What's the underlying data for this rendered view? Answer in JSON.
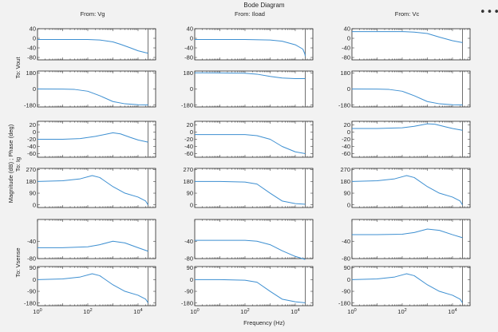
{
  "title": "Bode Diagram",
  "menu_icon": "more-horizontal-icon",
  "xlabel": "Frequency (Hz)",
  "ylabel": "Magnitude (dB) ; Phase (deg)",
  "column_titles": [
    "From: Vg",
    "From: Iload",
    "From: Vc"
  ],
  "row_titles": [
    "To: Vout",
    "To: Ig",
    "To: Vsense"
  ],
  "colors": {
    "line": "#3d8fd1",
    "axes": "#262626",
    "background": "#f2f2f2",
    "plot_bg": "#ffffff",
    "nyquist_marker": "#4d4d4d"
  },
  "chart_data": {
    "type": "line",
    "title": "Bode Diagram",
    "xlabel": "Frequency (Hz)",
    "ylabel": "Magnitude (dB) ; Phase (deg)",
    "x_scale": "log",
    "xlim": [
      1,
      50000
    ],
    "x_ticks": [
      1,
      100,
      10000
    ],
    "x_tick_labels": [
      "10^0",
      "10^2",
      "10^4"
    ],
    "nyquist_frequency": 25000,
    "grid": false,
    "inputs": [
      "Vg",
      "Iload",
      "Vc"
    ],
    "outputs": [
      "Vout",
      "Ig",
      "Vsense"
    ],
    "rows": [
      {
        "output": "Vout",
        "quantity": "magnitude",
        "ylim": [
          -90,
          40
        ],
        "yticks": [
          40,
          0,
          -40,
          -80
        ],
        "ytick_labels": [
          "40",
          "0",
          "-40",
          "-80"
        ]
      },
      {
        "output": "Vout",
        "quantity": "phase",
        "ylim": [
          -200,
          200
        ],
        "yticks": [
          180,
          0,
          -180
        ],
        "ytick_labels": [
          "180",
          "0",
          "-180"
        ]
      },
      {
        "output": "Ig",
        "quantity": "magnitude",
        "ylim": [
          -70,
          30
        ],
        "yticks": [
          20,
          0,
          -20,
          -40,
          -60
        ],
        "ytick_labels": [
          "20",
          "0",
          "-20",
          "-40",
          "-60"
        ]
      },
      {
        "output": "Ig",
        "quantity": "phase",
        "ylim": [
          -20,
          280
        ],
        "yticks": [
          270,
          180,
          90,
          0
        ],
        "ytick_labels": [
          "270",
          "180",
          "90",
          "0"
        ]
      },
      {
        "output": "Vsense",
        "quantity": "magnitude",
        "ylim": [
          -80,
          10
        ],
        "yticks": [
          -40,
          -80
        ],
        "ytick_labels": [
          "-40",
          "-80"
        ]
      },
      {
        "output": "Vsense",
        "quantity": "phase",
        "ylim": [
          -200,
          100
        ],
        "yticks": [
          90,
          0,
          -90,
          -180
        ],
        "ytick_labels": [
          "90",
          "0",
          "-90",
          "-180"
        ]
      }
    ],
    "panels": [
      {
        "row": 0,
        "col": 0,
        "x": [
          1,
          10,
          100,
          300,
          1000,
          2000,
          5000,
          10000,
          20000,
          25000
        ],
        "y": [
          -5,
          -5,
          -5,
          -7,
          -15,
          -25,
          -40,
          -52,
          -60,
          -62
        ]
      },
      {
        "row": 0,
        "col": 1,
        "x": [
          1,
          10,
          100,
          1000,
          3000,
          10000,
          20000,
          24000,
          25000
        ],
        "y": [
          -5,
          -5,
          -5,
          -7,
          -12,
          -27,
          -45,
          -65,
          -75
        ]
      },
      {
        "row": 0,
        "col": 2,
        "x": [
          1,
          10,
          100,
          300,
          1000,
          3000,
          10000,
          25000
        ],
        "y": [
          28,
          28,
          28,
          26,
          20,
          5,
          -10,
          -18
        ]
      },
      {
        "row": 1,
        "col": 0,
        "x": [
          1,
          10,
          30,
          100,
          300,
          1000,
          3000,
          10000,
          25000
        ],
        "y": [
          0,
          -1,
          -5,
          -25,
          -75,
          -140,
          -165,
          -175,
          -178
        ]
      },
      {
        "row": 1,
        "col": 1,
        "x": [
          1,
          10,
          100,
          300,
          1000,
          3000,
          10000,
          24000,
          25000
        ],
        "y": [
          180,
          179,
          175,
          165,
          140,
          122,
          115,
          115,
          115
        ]
      },
      {
        "row": 1,
        "col": 2,
        "x": [
          1,
          10,
          30,
          100,
          300,
          1000,
          3000,
          10000,
          25000
        ],
        "y": [
          0,
          -1,
          -5,
          -25,
          -75,
          -140,
          -165,
          -175,
          -178
        ]
      },
      {
        "row": 2,
        "col": 0,
        "x": [
          1,
          10,
          50,
          200,
          1000,
          2000,
          5000,
          10000,
          25000
        ],
        "y": [
          -20,
          -20,
          -18,
          -12,
          -2,
          -5,
          -15,
          -22,
          -28
        ]
      },
      {
        "row": 2,
        "col": 1,
        "x": [
          1,
          10,
          100,
          300,
          1000,
          3000,
          10000,
          25000
        ],
        "y": [
          -7,
          -7,
          -7,
          -10,
          -20,
          -40,
          -55,
          -60
        ]
      },
      {
        "row": 2,
        "col": 2,
        "x": [
          1,
          10,
          100,
          300,
          1000,
          2000,
          5000,
          10000,
          25000
        ],
        "y": [
          10,
          10,
          12,
          16,
          23,
          22,
          15,
          10,
          5
        ]
      },
      {
        "row": 3,
        "col": 0,
        "x": [
          1,
          10,
          50,
          150,
          300,
          1000,
          3000,
          10000,
          20000,
          25000
        ],
        "y": [
          180,
          185,
          200,
          225,
          210,
          140,
          90,
          60,
          30,
          0
        ]
      },
      {
        "row": 3,
        "col": 1,
        "x": [
          1,
          10,
          100,
          300,
          1000,
          3000,
          10000,
          25000
        ],
        "y": [
          180,
          180,
          175,
          160,
          90,
          30,
          10,
          5
        ]
      },
      {
        "row": 3,
        "col": 2,
        "x": [
          1,
          10,
          50,
          150,
          300,
          1000,
          3000,
          10000,
          20000,
          25000
        ],
        "y": [
          180,
          185,
          200,
          225,
          210,
          140,
          90,
          60,
          30,
          0
        ]
      },
      {
        "row": 4,
        "col": 0,
        "x": [
          1,
          10,
          100,
          300,
          1000,
          3000,
          10000,
          25000
        ],
        "y": [
          -55,
          -55,
          -53,
          -48,
          -40,
          -44,
          -55,
          -63
        ]
      },
      {
        "row": 4,
        "col": 1,
        "x": [
          1,
          10,
          100,
          300,
          1000,
          3000,
          10000,
          25000
        ],
        "y": [
          -38,
          -38,
          -38,
          -40,
          -48,
          -62,
          -75,
          -82
        ]
      },
      {
        "row": 4,
        "col": 2,
        "x": [
          1,
          10,
          100,
          300,
          1000,
          3000,
          10000,
          25000
        ],
        "y": [
          -25,
          -25,
          -24,
          -20,
          -12,
          -15,
          -25,
          -32
        ]
      },
      {
        "row": 5,
        "col": 0,
        "x": [
          1,
          10,
          50,
          150,
          300,
          1000,
          3000,
          10000,
          20000,
          25000
        ],
        "y": [
          0,
          5,
          20,
          45,
          30,
          -40,
          -90,
          -120,
          -150,
          -178
        ]
      },
      {
        "row": 5,
        "col": 1,
        "x": [
          1,
          10,
          100,
          300,
          1000,
          3000,
          10000,
          25000
        ],
        "y": [
          0,
          0,
          -5,
          -20,
          -90,
          -150,
          -170,
          -178
        ]
      },
      {
        "row": 5,
        "col": 2,
        "x": [
          1,
          10,
          50,
          150,
          300,
          1000,
          3000,
          10000,
          20000,
          25000
        ],
        "y": [
          0,
          5,
          20,
          45,
          30,
          -40,
          -90,
          -120,
          -150,
          -178
        ]
      }
    ]
  }
}
